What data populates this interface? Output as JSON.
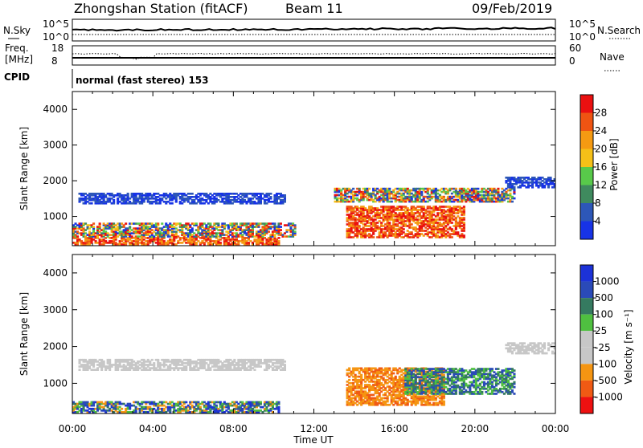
{
  "header": {
    "station": "Zhongshan Station (fitACF)",
    "beam": "Beam 11",
    "date": "09/Feb/2019"
  },
  "strips": {
    "nsky_label": "N.Sky",
    "nsky_ticks": [
      "10^5",
      "10^0"
    ],
    "nsearch_label": "N.Search",
    "nsearch_ticks": [
      "10^5",
      "10^0"
    ],
    "freq_label_1": "Freq.",
    "freq_label_2": "[MHz]",
    "freq_ticks": [
      "18",
      "8"
    ],
    "nave_label": "Nave",
    "nave_ticks": [
      "60",
      "0"
    ],
    "cpid_label": "CPID",
    "cpid_text": "normal (fast stereo) 153"
  },
  "colors": {
    "power": [
      "#1733e6",
      "#2d57b8",
      "#3f8a5e",
      "#58c94a",
      "#f5c018",
      "#f59a12",
      "#ef5412",
      "#ea1010"
    ],
    "velocity": [
      "#ee1111",
      "#f05a14",
      "#f59512",
      "#c7c7c7",
      "#c7c7c7",
      "#4fc040",
      "#357a60",
      "#2a4ab8",
      "#1c32d8"
    ]
  },
  "chart_data": [
    {
      "type": "heatmap",
      "title": "Power",
      "ylabel": "Slant Range [km]",
      "xlabel": "Time UT",
      "x_ticks": [
        "00:00",
        "04:00",
        "08:00",
        "12:00",
        "16:00",
        "20:00",
        "00:00"
      ],
      "x_range_hours": [
        0,
        24
      ],
      "y_ticks": [
        1000,
        2000,
        3000,
        4000
      ],
      "ylim": [
        180,
        4500
      ],
      "colorbar": {
        "label": "Power [dB]",
        "ticks": [
          4,
          8,
          12,
          16,
          20,
          24,
          28
        ],
        "range": [
          0,
          32
        ]
      },
      "regions": [
        {
          "t": [
            0,
            10.2
          ],
          "r": [
            200,
            420
          ],
          "level": "high"
        },
        {
          "t": [
            0,
            11
          ],
          "r": [
            420,
            800
          ],
          "level": "mixed"
        },
        {
          "t": [
            0.3,
            10.5
          ],
          "r": [
            1350,
            1650
          ],
          "level": "low"
        },
        {
          "t": [
            13.6,
            19.5
          ],
          "r": [
            400,
            1300
          ],
          "level": "high"
        },
        {
          "t": [
            13,
            22
          ],
          "r": [
            1400,
            1800
          ],
          "level": "mixed"
        },
        {
          "t": [
            21.5,
            24
          ],
          "r": [
            1800,
            2100
          ],
          "level": "low"
        }
      ]
    },
    {
      "type": "heatmap",
      "title": "Velocity",
      "ylabel": "Slant Range [km]",
      "xlabel": "Time UT",
      "x_ticks": [
        "00:00",
        "04:00",
        "08:00",
        "12:00",
        "16:00",
        "20:00",
        "00:00"
      ],
      "x_range_hours": [
        0,
        24
      ],
      "y_ticks": [
        1000,
        2000,
        3000,
        4000
      ],
      "ylim": [
        180,
        4500
      ],
      "colorbar": {
        "label": "Velocity [m s⁻¹]",
        "ticks": [
          "1000",
          "500",
          "100",
          "25",
          "-25",
          "-100",
          "-500",
          "-1000"
        ]
      },
      "regions": [
        {
          "t": [
            0,
            10.2
          ],
          "r": [
            200,
            500
          ],
          "level": "mixed"
        },
        {
          "t": [
            0.3,
            10.5
          ],
          "r": [
            1350,
            1650
          ],
          "level": "ground"
        },
        {
          "t": [
            13.6,
            18.5
          ],
          "r": [
            400,
            1400
          ],
          "level": "negative"
        },
        {
          "t": [
            16.5,
            22
          ],
          "r": [
            700,
            1400
          ],
          "level": "positive"
        },
        {
          "t": [
            21.5,
            24
          ],
          "r": [
            1800,
            2100
          ],
          "level": "ground"
        }
      ]
    }
  ],
  "xaxis": {
    "label": "Time UT",
    "ticks": [
      "00:00",
      "04:00",
      "08:00",
      "12:00",
      "16:00",
      "20:00",
      "00:00"
    ]
  }
}
